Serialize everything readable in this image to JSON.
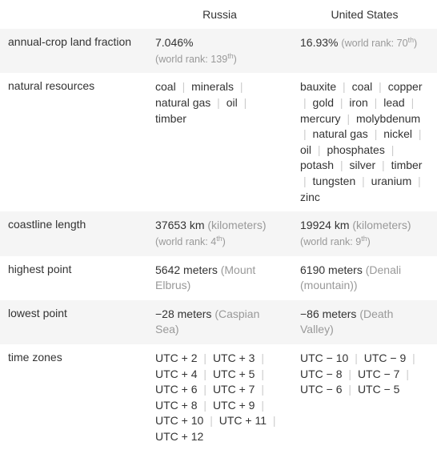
{
  "columns": [
    "",
    "Russia",
    "United States"
  ],
  "rows": [
    {
      "label": "annual-crop land fraction",
      "russia": {
        "value": "7.046%",
        "note_prefix": "(world rank: 139",
        "note_sup": "th",
        "note_suffix": ")"
      },
      "us": {
        "value": "16.93%",
        "note_prefix": "(world rank: 70",
        "note_sup": "th",
        "note_suffix": ")",
        "inline": true
      }
    },
    {
      "label": "natural resources",
      "russia": {
        "list": [
          "coal",
          "minerals",
          "natural gas",
          "oil",
          "timber"
        ]
      },
      "us": {
        "list": [
          "bauxite",
          "coal",
          "copper",
          "gold",
          "iron",
          "lead",
          "mercury",
          "molybdenum",
          "natural gas",
          "nickel",
          "oil",
          "phosphates",
          "potash",
          "silver",
          "timber",
          "tungsten",
          "uranium",
          "zinc"
        ]
      }
    },
    {
      "label": "coastline length",
      "russia": {
        "value": "37653 km",
        "unit": "(kilometers)",
        "note_prefix": "(world rank: 4",
        "note_sup": "th",
        "note_suffix": ")"
      },
      "us": {
        "value": "19924 km",
        "unit": "(kilometers)",
        "note_prefix": "(world rank: 9",
        "note_sup": "th",
        "note_suffix": ")"
      }
    },
    {
      "label": "highest point",
      "russia": {
        "value": "5642 meters",
        "unit": "(Mount Elbrus)"
      },
      "us": {
        "value": "6190 meters",
        "unit": "(Denali (mountain))"
      }
    },
    {
      "label": "lowest point",
      "russia": {
        "value": "−28 meters",
        "unit": "(Caspian Sea)"
      },
      "us": {
        "value": "−86 meters",
        "unit": "(Death Valley)"
      }
    },
    {
      "label": "time zones",
      "russia": {
        "list": [
          "UTC + 2",
          "UTC + 3",
          "UTC + 4",
          "UTC + 5",
          "UTC + 6",
          "UTC + 7",
          "UTC + 8",
          "UTC + 9",
          "UTC + 10",
          "UTC + 11",
          "UTC + 12"
        ]
      },
      "us": {
        "list": [
          "UTC − 10",
          "UTC − 9",
          "UTC − 8",
          "UTC − 7",
          "UTC − 6",
          "UTC − 5"
        ]
      }
    }
  ],
  "styling": {
    "font_family": "Arial",
    "font_size": 14,
    "row_odd_bg": "#f5f5f5",
    "row_even_bg": "#ffffff",
    "text_color": "#333333",
    "gray_color": "#999999",
    "pipe_color": "#cccccc"
  }
}
